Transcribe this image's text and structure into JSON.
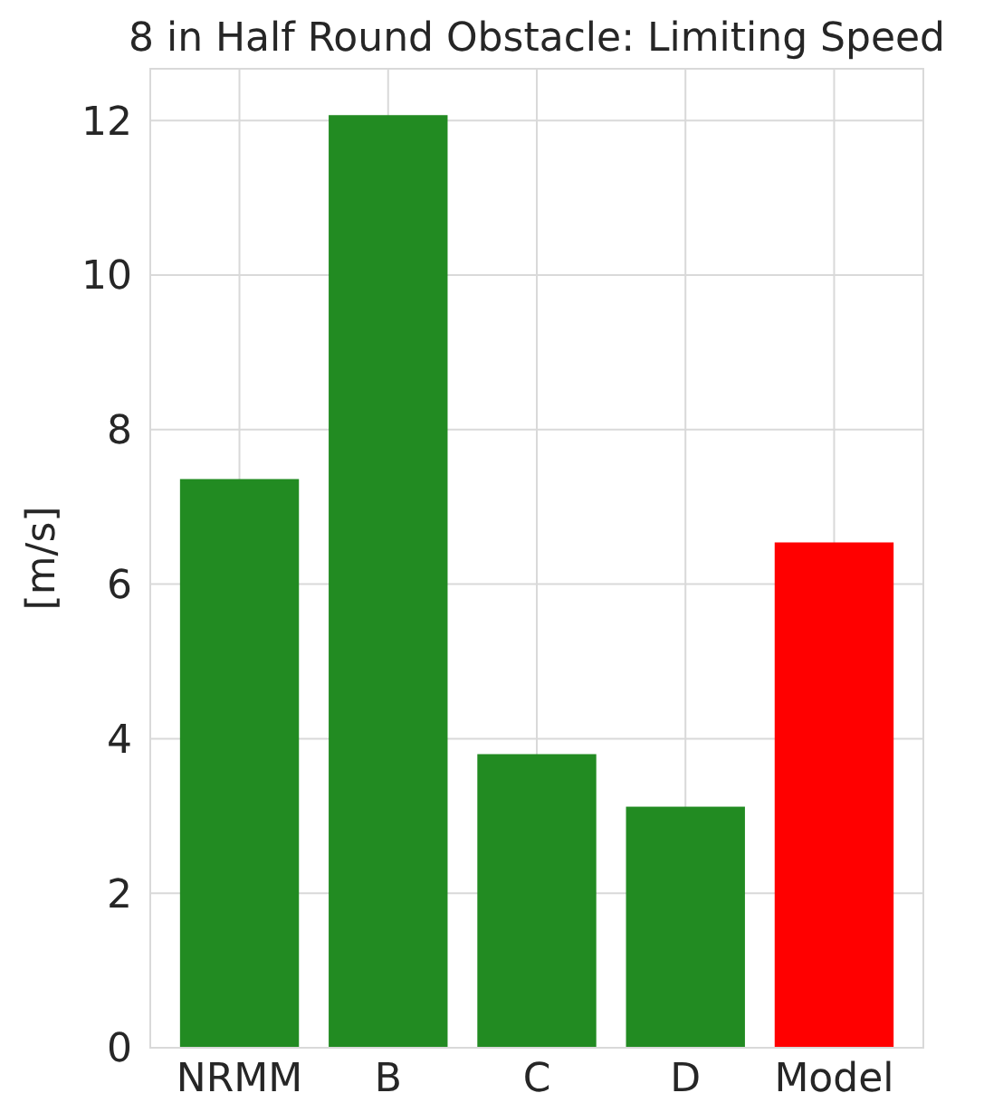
{
  "chart_data": {
    "type": "bar",
    "title": "8 in Half Round Obstacle: Limiting Speed",
    "ylabel": "[m/s]",
    "categories": [
      "NRMM",
      "B",
      "C",
      "D",
      "Model"
    ],
    "values": [
      7.36,
      12.07,
      3.8,
      3.12,
      6.54
    ],
    "colors": [
      "#228b22",
      "#228b22",
      "#228b22",
      "#228b22",
      "#ff0000"
    ],
    "ylim": [
      0,
      12.67
    ],
    "yticks": [
      0,
      2,
      4,
      6,
      8,
      10,
      12
    ],
    "grid": true
  }
}
